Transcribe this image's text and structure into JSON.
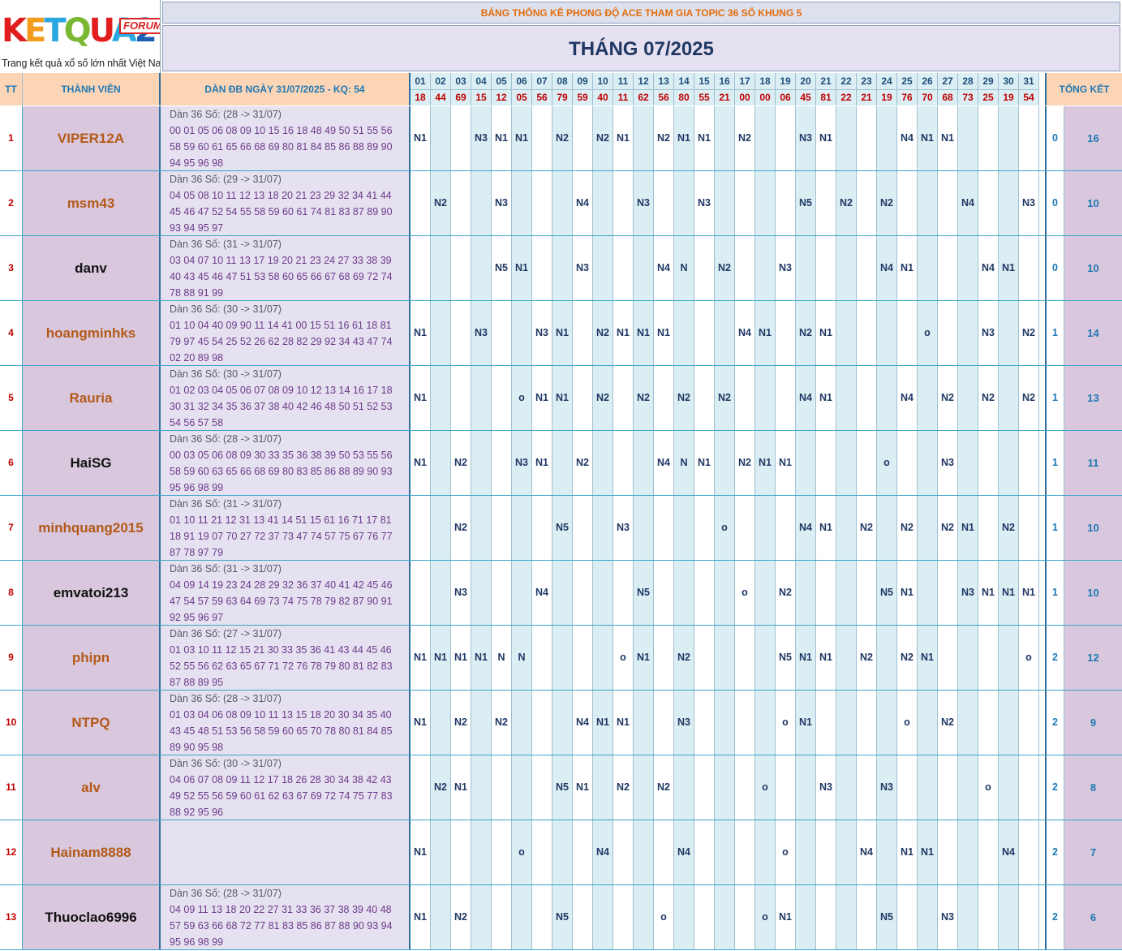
{
  "logo": {
    "text": "KETQUA2",
    "badge": "FORUM",
    "tagline": "Trang kết quả xổ số lớn nhất Việt Nam"
  },
  "subtitle": "BẢNG THỐNG KÊ PHONG ĐỘ ACE THAM GIA TOPIC 36 SỐ KHUNG 5",
  "month_title": "THÁNG 07/2025",
  "headers": {
    "tt": "TT",
    "member": "THÀNH VIÊN",
    "dan": "DÀN ĐB NGÀY 31/07/2025 - KQ: 54",
    "total": "TỔNG KẾT"
  },
  "days": [
    "01",
    "02",
    "03",
    "04",
    "05",
    "06",
    "07",
    "08",
    "09",
    "10",
    "11",
    "12",
    "13",
    "14",
    "15",
    "16",
    "17",
    "18",
    "19",
    "20",
    "21",
    "22",
    "23",
    "24",
    "25",
    "26",
    "27",
    "28",
    "29",
    "30",
    "31"
  ],
  "results": [
    "18",
    "44",
    "69",
    "15",
    "12",
    "05",
    "56",
    "79",
    "59",
    "40",
    "11",
    "62",
    "56",
    "80",
    "55",
    "21",
    "00",
    "00",
    "06",
    "45",
    "81",
    "22",
    "21",
    "19",
    "76",
    "70",
    "68",
    "73",
    "25",
    "19",
    "54"
  ],
  "colors": {
    "name_orange": "#b35a1a",
    "name_black": "#111111",
    "accent": "#1f78b4",
    "result_red": "#c00000"
  },
  "rows": [
    {
      "tt": "1",
      "name": "VIPER12A",
      "color": "orange",
      "dan_label": "Dàn 36 Số: (28 -> 31/07)",
      "numbers": "00 01 05 06 08 09 10 15 16 18 48 49 50 51 55 56 58 59 60 61 65 66 68 69 80 81 84 85 86 88 89 90 94 95 96 98",
      "marks": [
        "N1",
        "",
        "",
        "N3",
        "N1",
        "N1",
        "",
        "N2",
        "",
        "N2",
        "N1",
        "",
        "N2",
        "N1",
        "N1",
        "",
        "N2",
        "",
        "",
        "N3",
        "N1",
        "",
        "",
        "",
        "N4",
        "N1",
        "N1",
        "",
        "",
        "",
        ""
      ],
      "hits": "0",
      "total": "16"
    },
    {
      "tt": "2",
      "name": "msm43",
      "color": "orange",
      "dan_label": "Dàn 36 Số: (29 -> 31/07)",
      "numbers": "04 05 08 10 11 12 13 18 20 21 23 29 32 34 41 44 45 46 47 52 54 55 58 59 60 61 74 81 83 87 89 90 93 94 95 97",
      "marks": [
        "",
        "N2",
        "",
        "",
        "N3",
        "",
        "",
        "",
        "N4",
        "",
        "",
        "N3",
        "",
        "",
        "N3",
        "",
        "",
        "",
        "",
        "N5",
        "",
        "N2",
        "",
        "N2",
        "",
        "",
        "",
        "N4",
        "",
        "",
        "N3"
      ],
      "hits": "0",
      "total": "10"
    },
    {
      "tt": "3",
      "name": "danv",
      "color": "black",
      "dan_label": "Dàn 36 Số: (31 -> 31/07)",
      "numbers": "03 04 07 10 11 13 17 19 20 21 23 24 27 33 38 39 40 43 45 46 47 51 53 58 60 65 66 67 68 69 72 74 78 88 91 99",
      "marks": [
        "",
        "",
        "",
        "",
        "N5",
        "N1",
        "",
        "",
        "N3",
        "",
        "",
        "",
        "N4",
        "N",
        "",
        "N2",
        "",
        "",
        "N3",
        "",
        "",
        "",
        "",
        "N4",
        "N1",
        "",
        "",
        "",
        "N4",
        "N1",
        ""
      ],
      "hits": "0",
      "total": "10"
    },
    {
      "tt": "4",
      "name": "hoangminhks",
      "color": "orange",
      "dan_label": "Dàn 36 Số: (30 -> 31/07)",
      "numbers": "01 10 04 40 09 90 11 14 41 00 15 51 16 61 18 81 79 97 45 54 25 52 26 62 28 82 29 92 34 43 47 74 02 20 89 98",
      "marks": [
        "N1",
        "",
        "",
        "N3",
        "",
        "",
        "N3",
        "N1",
        "",
        "N2",
        "N1",
        "N1",
        "N1",
        "",
        "",
        "",
        "N4",
        "N1",
        "",
        "N2",
        "N1",
        "",
        "",
        "",
        "",
        "o",
        "",
        "",
        "N3",
        "",
        "N2"
      ],
      "hits": "1",
      "total": "14"
    },
    {
      "tt": "5",
      "name": "Rauria",
      "color": "orange",
      "dan_label": "Dàn 36 Số: (30 -> 31/07)",
      "numbers": "01 02 03 04 05 06 07 08 09 10 12 13 14 16 17 18 30 31 32 34 35 36 37 38 40 42 46 48 50 51 52 53 54 56 57 58",
      "marks": [
        "N1",
        "",
        "",
        "",
        "",
        "o",
        "N1",
        "N1",
        "",
        "N2",
        "",
        "N2",
        "",
        "N2",
        "",
        "N2",
        "",
        "",
        "",
        "N4",
        "N1",
        "",
        "",
        "",
        "N4",
        "",
        "N2",
        "",
        "N2",
        "",
        "N2"
      ],
      "hits": "1",
      "total": "13"
    },
    {
      "tt": "6",
      "name": "HaiSG",
      "color": "black",
      "dan_label": "Dàn 36 Số: (28 -> 31/07)",
      "numbers": "00 03 05 06 08 09 30 33 35 36 38 39 50 53 55 56 58 59 60 63 65 66 68 69 80 83 85 86 88 89 90 93 95 96 98 99",
      "marks": [
        "N1",
        "",
        "N2",
        "",
        "",
        "N3",
        "N1",
        "",
        "N2",
        "",
        "",
        "",
        "N4",
        "N",
        "N1",
        "",
        "N2",
        "N1",
        "N1",
        "",
        "",
        "",
        "",
        "o",
        "",
        "",
        "N3",
        "",
        "",
        "",
        ""
      ],
      "hits": "1",
      "total": "11"
    },
    {
      "tt": "7",
      "name": "minhquang2015",
      "color": "orange",
      "dan_label": "Dàn 36 Số: (31 -> 31/07)",
      "numbers": "01 10 11 21 12 31 13 41 14 51 15 61 16 71 17 81 18 91 19 07 70 27 72 37 73 47 74 57 75 67 76 77 87 78 97 79",
      "marks": [
        "",
        "",
        "N2",
        "",
        "",
        "",
        "",
        "N5",
        "",
        "",
        "N3",
        "",
        "",
        "",
        "",
        "o",
        "",
        "",
        "",
        "N4",
        "N1",
        "",
        "N2",
        "",
        "N2",
        "",
        "N2",
        "N1",
        "",
        "N2",
        ""
      ],
      "hits": "1",
      "total": "10"
    },
    {
      "tt": "8",
      "name": "emvatoi213",
      "color": "black",
      "dan_label": "Dàn 36 Số: (31 -> 31/07)",
      "numbers": "04 09 14 19 23 24 28 29 32 36 37 40 41 42 45 46 47 54 57 59 63 64 69 73 74 75 78 79 82 87 90 91 92 95 96 97",
      "marks": [
        "",
        "",
        "N3",
        "",
        "",
        "",
        "N4",
        "",
        "",
        "",
        "",
        "N5",
        "",
        "",
        "",
        "",
        "o",
        "",
        "N2",
        "",
        "",
        "",
        "",
        "N5",
        "N1",
        "",
        "",
        "N3",
        "N1",
        "N1",
        "N1"
      ],
      "hits": "1",
      "total": "10"
    },
    {
      "tt": "9",
      "name": "phipn",
      "color": "orange",
      "dan_label": "Dàn 36 Số: (27 -> 31/07)",
      "numbers": "01 03 10 11 12 15 21 30 33 35 36 41 43 44 45 46 52 55 56 62 63 65 67 71 72 76 78 79 80 81 82 83 87 88 89 95",
      "marks": [
        "N1",
        "N1",
        "N1",
        "N1",
        "N",
        "N",
        "",
        "",
        "",
        "",
        "o",
        "N1",
        "",
        "N2",
        "",
        "",
        "",
        "",
        "N5",
        "N1",
        "N1",
        "",
        "N2",
        "",
        "N2",
        "N1",
        "",
        "",
        "",
        "",
        "o"
      ],
      "hits": "2",
      "total": "12"
    },
    {
      "tt": "10",
      "name": "NTPQ",
      "color": "orange",
      "dan_label": "Dàn 36 Số: (28 -> 31/07)",
      "numbers": "01 03 04 06 08 09 10 11 13 15 18 20 30 34 35 40 43 45 48 51 53 56 58 59 60 65 70 78 80 81 84 85 89 90 95 98",
      "marks": [
        "N1",
        "",
        "N2",
        "",
        "N2",
        "",
        "",
        "",
        "N4",
        "N1",
        "N1",
        "",
        "",
        "N3",
        "",
        "",
        "",
        "",
        "o",
        "N1",
        "",
        "",
        "",
        "",
        "o",
        "",
        "N2",
        "",
        "",
        "",
        ""
      ],
      "hits": "2",
      "total": "9"
    },
    {
      "tt": "11",
      "name": "alv",
      "color": "orange",
      "dan_label": "Dàn 36 Số: (30 -> 31/07)",
      "numbers": "04 06 07 08 09 11 12 17 18 26 28 30 34 38 42 43 49 52 55 56 59 60 61 62 63 67 69 72 74 75 77 83 88 92 95 96",
      "marks": [
        "",
        "N2",
        "N1",
        "",
        "",
        "",
        "",
        "N5",
        "N1",
        "",
        "N2",
        "",
        "N2",
        "",
        "",
        "",
        "",
        "o",
        "",
        "",
        "N3",
        "",
        "",
        "N3",
        "",
        "",
        "",
        "",
        "o",
        "",
        ""
      ],
      "hits": "2",
      "total": "8"
    },
    {
      "tt": "12",
      "name": "Hainam8888",
      "color": "orange",
      "dan_label": "",
      "numbers": "",
      "marks": [
        "N1",
        "",
        "",
        "",
        "",
        "o",
        "",
        "",
        "",
        "N4",
        "",
        "",
        "",
        "N4",
        "",
        "",
        "",
        "",
        "o",
        "",
        "",
        "",
        "N4",
        "",
        "N1",
        "N1",
        "",
        "",
        "",
        "N4",
        ""
      ],
      "hits": "2",
      "total": "7"
    },
    {
      "tt": "13",
      "name": "Thuoclao6996",
      "color": "black",
      "dan_label": "Dàn 36 Số: (28 -> 31/07)",
      "numbers": "04 09 11 13 18 20 22 27 31 33 36 37 38 39 40 48 57 59 63 66 68 72 77 81 83 85 86 87 88 90 93 94 95 96 98 99",
      "marks": [
        "N1",
        "",
        "N2",
        "",
        "",
        "",
        "",
        "N5",
        "",
        "",
        "",
        "",
        "o",
        "",
        "",
        "",
        "",
        "o",
        "N1",
        "",
        "",
        "",
        "",
        "N5",
        "",
        "",
        "N3",
        "",
        "",
        "",
        ""
      ],
      "hits": "2",
      "total": "6"
    }
  ]
}
